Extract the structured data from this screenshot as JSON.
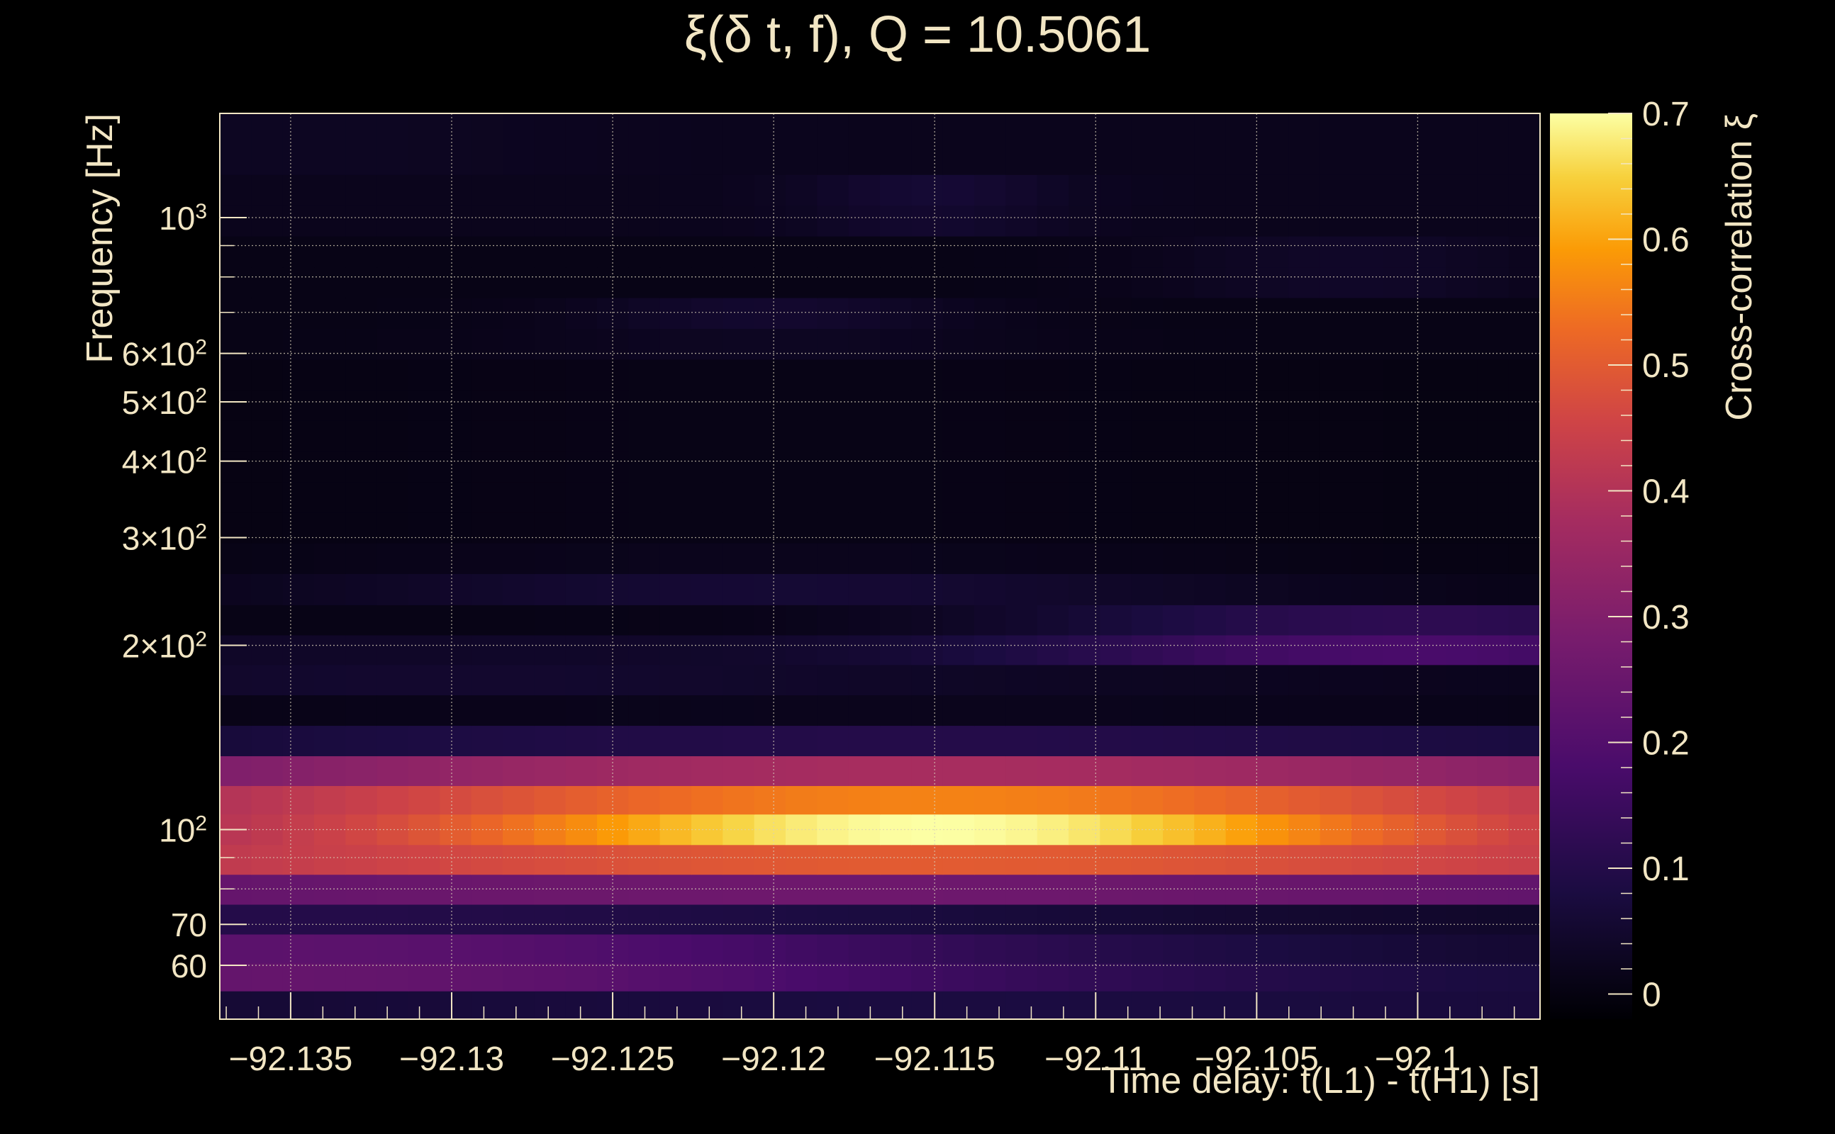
{
  "chart_data": {
    "type": "heatmap",
    "title": "ξ(δ t, f), Q = 10.5061",
    "xlabel": "Time delay: t(L1) - t(H1) [s]",
    "ylabel": "Frequency [Hz]",
    "colorbar_label": "Cross-correlation ξ",
    "x_range": [
      -92.1372,
      -92.0962
    ],
    "y_range": [
      49,
      1480
    ],
    "y_scale": "log",
    "z_range": [
      -0.02,
      0.7
    ],
    "x_ticks": [
      {
        "value": -92.135,
        "label": "−92.135"
      },
      {
        "value": -92.13,
        "label": "−92.13"
      },
      {
        "value": -92.125,
        "label": "−92.125"
      },
      {
        "value": -92.12,
        "label": "−92.12"
      },
      {
        "value": -92.115,
        "label": "−92.115"
      },
      {
        "value": -92.11,
        "label": "−92.11"
      },
      {
        "value": -92.105,
        "label": "−92.105"
      },
      {
        "value": -92.1,
        "label": "−92.1"
      }
    ],
    "y_ticks": [
      {
        "value": 60,
        "base": "60",
        "exp": ""
      },
      {
        "value": 70,
        "base": "70",
        "exp": ""
      },
      {
        "value": 100,
        "base": "10",
        "exp": "2"
      },
      {
        "value": 200,
        "base": "2×10",
        "exp": "2"
      },
      {
        "value": 300,
        "base": "3×10",
        "exp": "2"
      },
      {
        "value": 400,
        "base": "4×10",
        "exp": "2"
      },
      {
        "value": 500,
        "base": "5×10",
        "exp": "2"
      },
      {
        "value": 600,
        "base": "6×10",
        "exp": "2"
      },
      {
        "value": 1000,
        "base": "10",
        "exp": "3"
      }
    ],
    "colorbar_ticks": [
      {
        "value": 0,
        "label": "0"
      },
      {
        "value": 0.1,
        "label": "0.1"
      },
      {
        "value": 0.2,
        "label": "0.2"
      },
      {
        "value": 0.3,
        "label": "0.3"
      },
      {
        "value": 0.4,
        "label": "0.4"
      },
      {
        "value": 0.5,
        "label": "0.5"
      },
      {
        "value": 0.6,
        "label": "0.6"
      },
      {
        "value": 0.7,
        "label": "0.7"
      }
    ],
    "grid": true,
    "colormap": "inferno",
    "time_bins": 42,
    "frequency_bands_hz": [
      49,
      54.5,
      60.5,
      67.5,
      75.5,
      84.5,
      94.5,
      106,
      118,
      132,
      148,
      166,
      186,
      208,
      233,
      262,
      294,
      330,
      370,
      415,
      466,
      523,
      587,
      659,
      740,
      831,
      933,
      1048,
      1176,
      1320,
      1480
    ],
    "band_values": [
      {
        "f": 51.5,
        "peak": 0.08,
        "center": -92.112,
        "width": 0.04,
        "base": 0.02
      },
      {
        "f": 57.5,
        "peak": 0.24,
        "center": -92.135,
        "width": 0.025,
        "base": 0.06
      },
      {
        "f": 64,
        "peak": 0.22,
        "center": -92.135,
        "width": 0.025,
        "base": 0.04
      },
      {
        "f": 71.5,
        "peak": 0.1,
        "center": -92.135,
        "width": 0.03,
        "base": 0.03
      },
      {
        "f": 80,
        "peak": 0.26,
        "center": -92.118,
        "width": 0.04,
        "base": 0.16
      },
      {
        "f": 89.5,
        "peak": 0.5,
        "center": -92.115,
        "width": 0.03,
        "base": 0.32
      },
      {
        "f": 100,
        "peak": 0.7,
        "center": -92.115,
        "width": 0.016,
        "base": 0.36
      },
      {
        "f": 112,
        "peak": 0.56,
        "center": -92.115,
        "width": 0.022,
        "base": 0.31
      },
      {
        "f": 125,
        "peak": 0.38,
        "center": -92.115,
        "width": 0.03,
        "base": 0.18
      },
      {
        "f": 140,
        "peak": 0.1,
        "center": -92.115,
        "width": 0.03,
        "base": 0.03
      },
      {
        "f": 157,
        "peak": 0.02,
        "center": -92.115,
        "width": 0.03,
        "base": 0.0
      },
      {
        "f": 176,
        "peak": 0.05,
        "center": -92.13,
        "width": 0.02,
        "base": 0.02
      },
      {
        "f": 197,
        "peak": 0.18,
        "center": -92.1,
        "width": 0.012,
        "base": 0.04
      },
      {
        "f": 220,
        "peak": 0.12,
        "center": -92.1,
        "width": 0.012,
        "base": 0.01
      },
      {
        "f": 247,
        "peak": 0.06,
        "center": -92.12,
        "width": 0.015,
        "base": 0.01
      },
      {
        "f": 278,
        "peak": 0.02,
        "center": -92.12,
        "width": 0.02,
        "base": 0.0
      },
      {
        "f": 312,
        "peak": 0.01,
        "center": -92.12,
        "width": 0.02,
        "base": 0.0
      },
      {
        "f": 350,
        "peak": 0.01,
        "center": -92.12,
        "width": 0.02,
        "base": 0.0
      },
      {
        "f": 392,
        "peak": 0.01,
        "center": -92.12,
        "width": 0.02,
        "base": 0.0
      },
      {
        "f": 440,
        "peak": 0.01,
        "center": -92.12,
        "width": 0.02,
        "base": 0.0
      },
      {
        "f": 494,
        "peak": 0.01,
        "center": -92.12,
        "width": 0.02,
        "base": 0.0
      },
      {
        "f": 555,
        "peak": 0.01,
        "center": -92.12,
        "width": 0.02,
        "base": 0.0
      },
      {
        "f": 623,
        "peak": 0.03,
        "center": -92.12,
        "width": 0.008,
        "base": 0.01
      },
      {
        "f": 699,
        "peak": 0.05,
        "center": -92.12,
        "width": 0.006,
        "base": 0.01
      },
      {
        "f": 785,
        "peak": 0.04,
        "center": -92.102,
        "width": 0.006,
        "base": 0.01
      },
      {
        "f": 882,
        "peak": 0.04,
        "center": -92.102,
        "width": 0.006,
        "base": 0.01
      },
      {
        "f": 990,
        "peak": 0.05,
        "center": -92.115,
        "width": 0.004,
        "base": 0.02
      },
      {
        "f": 1112,
        "peak": 0.06,
        "center": -92.115,
        "width": 0.004,
        "base": 0.02
      },
      {
        "f": 1248,
        "peak": 0.03,
        "center": -92.135,
        "width": 0.01,
        "base": 0.02
      },
      {
        "f": 1400,
        "peak": 0.03,
        "center": -92.135,
        "width": 0.01,
        "base": 0.02
      }
    ],
    "peak": {
      "x": -92.115,
      "y": 100,
      "value": 0.7
    }
  }
}
